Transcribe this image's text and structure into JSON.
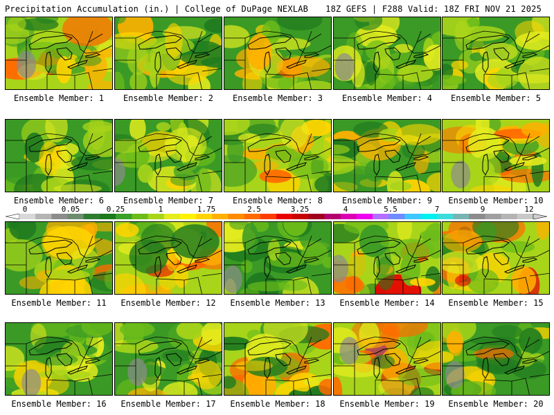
{
  "header": {
    "left": "Precipitation Accumulation (in.) | College of DuPage NEXLAB",
    "right": "18Z GEFS | F288 Valid: 18Z FRI NOV 21 2025"
  },
  "colorbar": {
    "ticks": [
      "0",
      "0.05",
      "0.25",
      "1",
      "1.75",
      "2.5",
      "3.25",
      "4",
      "5.5",
      "7",
      "9",
      "12"
    ],
    "colors": [
      "#d8d8d8",
      "#b4b4b4",
      "#8c8c8c",
      "#6e8c6e",
      "#2e7d32",
      "#1b7a1b",
      "#3aa02a",
      "#6cbc1a",
      "#a8d41a",
      "#e4ec1e",
      "#fff200",
      "#ffd400",
      "#ffb000",
      "#ff8c00",
      "#ff6a00",
      "#ff3c00",
      "#e80000",
      "#c80000",
      "#a0001e",
      "#b4006e",
      "#dc00b4",
      "#f000f0",
      "#b46eff",
      "#6e8cff",
      "#3cc8ff",
      "#00f0f0",
      "#3cdcdc",
      "#78b4b4",
      "#8c8c8c",
      "#a0a0a0",
      "#b4b4b4",
      "#c8c8c8"
    ]
  },
  "panels": [
    {
      "label": "Ensemble Member: 1",
      "wet": 0.55
    },
    {
      "label": "Ensemble Member: 2",
      "wet": 0.35
    },
    {
      "label": "Ensemble Member: 3",
      "wet": 0.45
    },
    {
      "label": "Ensemble Member: 4",
      "wet": 0.15
    },
    {
      "label": "Ensemble Member: 5",
      "wet": 0.3
    },
    {
      "label": "Ensemble Member: 6",
      "wet": 0.3
    },
    {
      "label": "Ensemble Member: 7",
      "wet": 0.25
    },
    {
      "label": "Ensemble Member: 8",
      "wet": 0.55
    },
    {
      "label": "Ensemble Member: 9",
      "wet": 0.35
    },
    {
      "label": "Ensemble Member: 10",
      "wet": 0.55
    },
    {
      "label": "Ensemble Member: 11",
      "wet": 0.45
    },
    {
      "label": "Ensemble Member: 12",
      "wet": 0.65
    },
    {
      "label": "Ensemble Member: 13",
      "wet": 0.2
    },
    {
      "label": "Ensemble Member: 14",
      "wet": 0.65
    },
    {
      "label": "Ensemble Member: 15",
      "wet": 0.7
    },
    {
      "label": "Ensemble Member: 16",
      "wet": 0.2
    },
    {
      "label": "Ensemble Member: 17",
      "wet": 0.3
    },
    {
      "label": "Ensemble Member: 18",
      "wet": 0.55
    },
    {
      "label": "Ensemble Member: 19",
      "wet": 0.8
    },
    {
      "label": "Ensemble Member: 20",
      "wet": 0.45
    }
  ]
}
